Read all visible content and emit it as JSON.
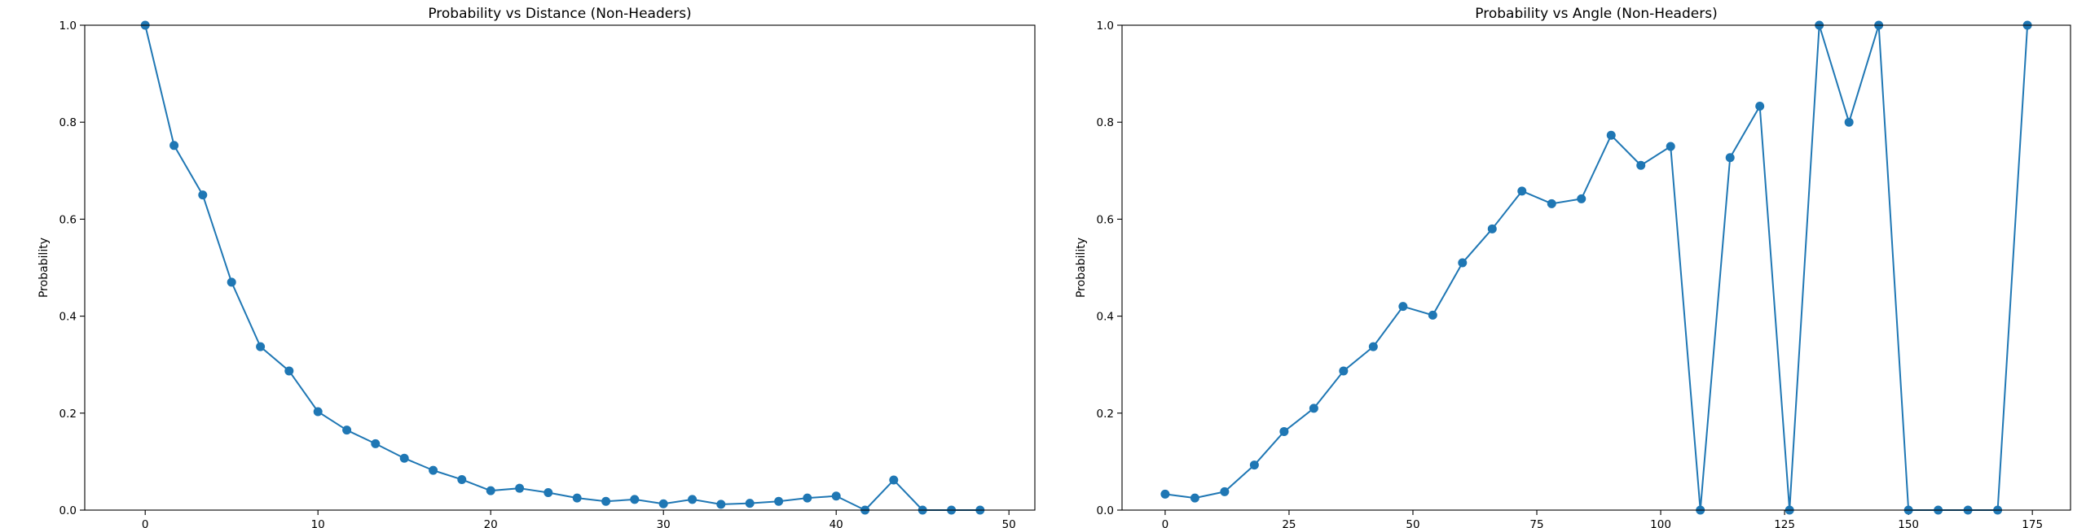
{
  "chart_data": [
    {
      "type": "line",
      "title": "Probability vs Distance (Non-Headers)",
      "xlabel": "",
      "ylabel": "Probability",
      "xlim": [
        -3.5,
        51.5
      ],
      "ylim": [
        0,
        1.0
      ],
      "xticks": [
        0,
        10,
        20,
        30,
        40,
        50
      ],
      "yticks": [
        0.0,
        0.2,
        0.4,
        0.6,
        0.8,
        1.0
      ],
      "series_color": "#1f77b4",
      "series": [
        {
          "name": "Probability",
          "x": [
            0,
            1.67,
            3.33,
            5.0,
            6.67,
            8.33,
            10.0,
            11.67,
            13.33,
            15.0,
            16.67,
            18.33,
            20.0,
            21.67,
            23.33,
            25.0,
            26.67,
            28.33,
            30.0,
            31.67,
            33.33,
            35.0,
            36.67,
            38.33,
            40.0,
            41.67,
            43.33,
            45.0,
            46.67,
            48.33
          ],
          "y": [
            1.0,
            0.752,
            0.65,
            0.47,
            0.337,
            0.287,
            0.203,
            0.165,
            0.137,
            0.107,
            0.082,
            0.063,
            0.04,
            0.045,
            0.036,
            0.025,
            0.018,
            0.022,
            0.013,
            0.022,
            0.012,
            0.014,
            0.018,
            0.025,
            0.029,
            0.0,
            0.062,
            0.0,
            0.0,
            0.0
          ]
        }
      ]
    },
    {
      "type": "line",
      "title": "Probability vs Angle (Non-Headers)",
      "xlabel": "",
      "ylabel": "Probability",
      "xlim": [
        -8.7,
        182.7
      ],
      "ylim": [
        0,
        1.0
      ],
      "xticks": [
        0,
        25,
        50,
        75,
        100,
        125,
        150,
        175
      ],
      "yticks": [
        0.0,
        0.2,
        0.4,
        0.6,
        0.8,
        1.0
      ],
      "series_color": "#1f77b4",
      "series": [
        {
          "name": "Probability",
          "x": [
            0,
            6,
            12,
            18,
            24,
            30,
            36,
            42,
            48,
            54,
            60,
            66,
            72,
            78,
            84,
            90,
            96,
            102,
            108,
            114,
            120,
            126,
            132,
            138,
            144,
            150,
            156,
            162,
            168,
            174
          ],
          "y": [
            0.033,
            0.025,
            0.038,
            0.093,
            0.162,
            0.21,
            0.287,
            0.337,
            0.42,
            0.402,
            0.51,
            0.58,
            0.658,
            0.632,
            0.642,
            0.773,
            0.711,
            0.75,
            0.0,
            0.727,
            0.833,
            0.0,
            1.0,
            0.8,
            1.0,
            0.0,
            0.0,
            0.0,
            0.0,
            1.0
          ]
        }
      ]
    }
  ]
}
